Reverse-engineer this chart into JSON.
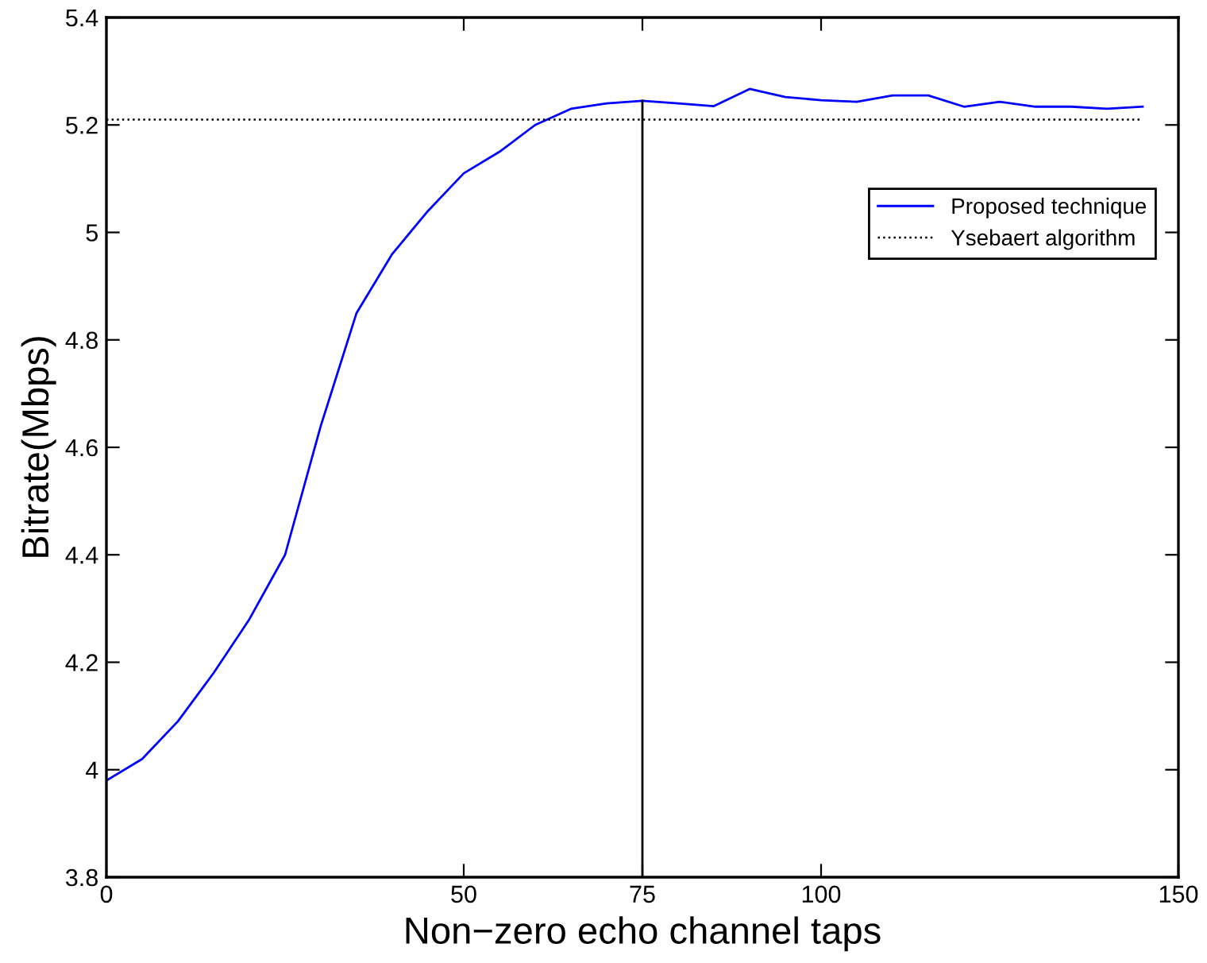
{
  "chart_data": {
    "type": "line",
    "xlabel": "Non−zero echo channel taps",
    "ylabel": "Bitrate(Mbps)",
    "xlim": [
      0,
      150
    ],
    "ylim": [
      3.8,
      5.4
    ],
    "xticks": [
      0,
      50,
      75,
      100,
      150
    ],
    "yticks": [
      3.8,
      4,
      4.2,
      4.4,
      4.6,
      4.8,
      5,
      5.2,
      5.4
    ],
    "grid": false,
    "legend": "right",
    "marker": "none",
    "series": [
      {
        "name": "Proposed technique",
        "color": "#0000ff",
        "line_style": "solid",
        "x": [
          0,
          5,
          10,
          15,
          20,
          25,
          30,
          35,
          40,
          45,
          50,
          55,
          60,
          65,
          70,
          75,
          80,
          85,
          90,
          95,
          100,
          105,
          110,
          115,
          120,
          125,
          130,
          135,
          140,
          145
        ],
        "values": [
          3.98,
          4.02,
          4.09,
          4.18,
          4.28,
          4.4,
          4.64,
          4.85,
          4.96,
          5.04,
          5.11,
          5.15,
          5.2,
          5.23,
          5.24,
          5.245,
          5.24,
          5.235,
          5.267,
          5.252,
          5.246,
          5.243,
          5.255,
          5.255,
          5.234,
          5.243,
          5.234,
          5.234,
          5.23,
          5.234
        ]
      },
      {
        "name": "Ysebaert algorithm",
        "color": "#000000",
        "line_style": "dotted",
        "x": [
          0,
          145
        ],
        "values": [
          5.21,
          5.21
        ]
      }
    ],
    "ref_lines": [
      {
        "axis": "x",
        "value": 75,
        "color": "#000000",
        "line_style": "solid"
      }
    ]
  }
}
